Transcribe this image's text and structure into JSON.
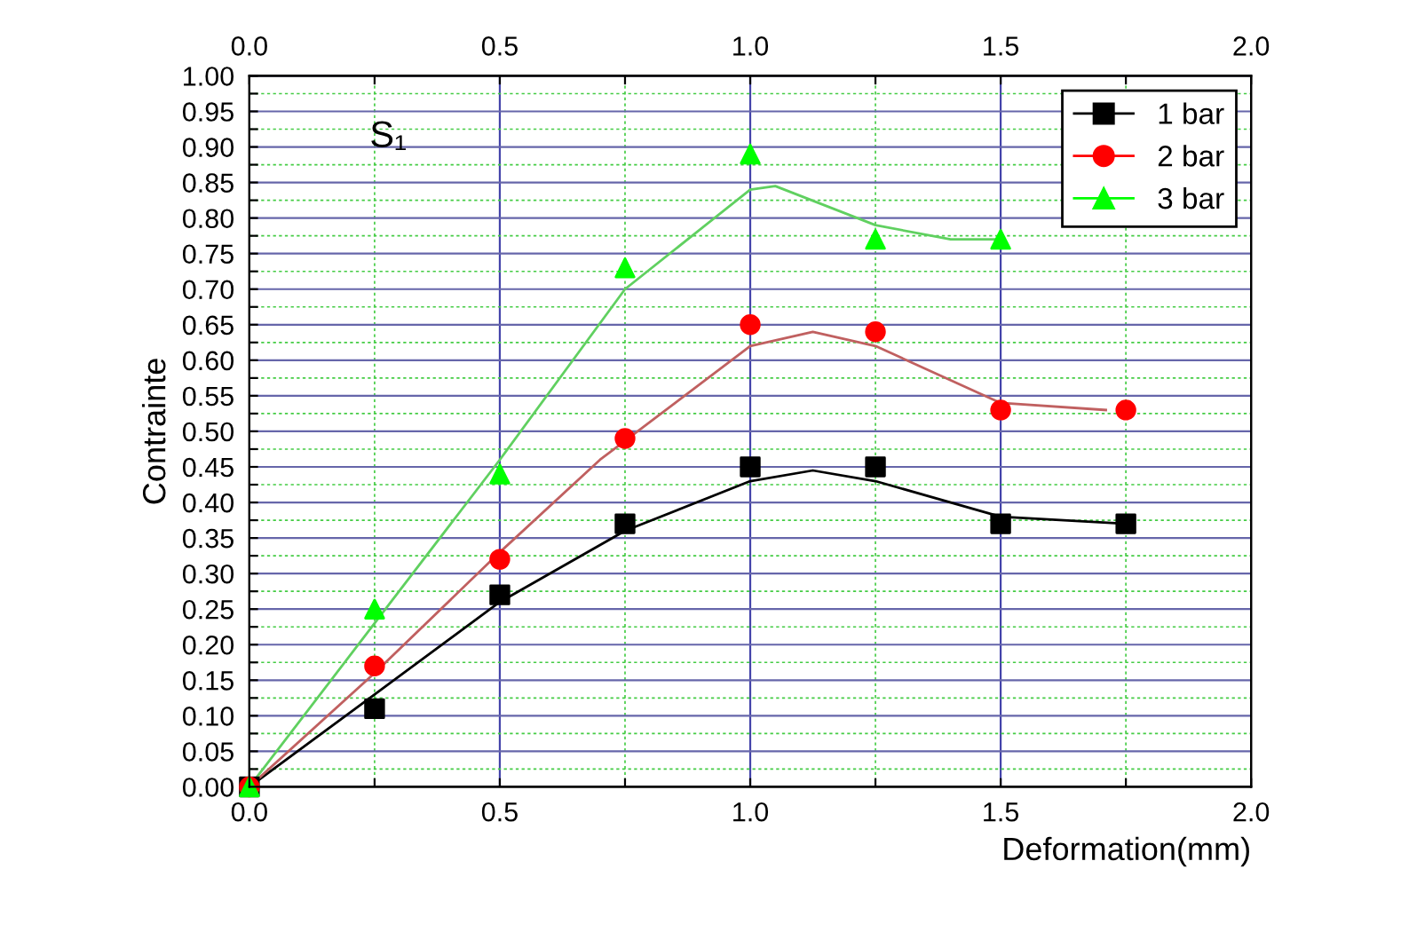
{
  "chart_data": {
    "type": "scatter",
    "xlabel": "Deformation(mm)",
    "ylabel": "Contrainte",
    "annotations": [
      "S₁"
    ],
    "x": [
      0,
      0.25,
      0.5,
      0.75,
      1.0,
      1.25,
      1.5,
      1.75
    ],
    "series": [
      {
        "name": "1 bar",
        "color": "#000000",
        "marker": "square",
        "values": [
          0,
          0.11,
          0.27,
          0.37,
          0.45,
          0.45,
          0.37,
          0.37
        ]
      },
      {
        "name": "2 bar",
        "color": "#ff0000",
        "marker": "circle",
        "values": [
          0,
          0.17,
          0.32,
          0.49,
          0.65,
          0.64,
          0.53,
          0.53
        ]
      },
      {
        "name": "3 bar",
        "color": "#00ff00",
        "marker": "triangle",
        "x": [
          0,
          0.25,
          0.5,
          0.75,
          1.0,
          1.25,
          1.5
        ],
        "values": [
          0,
          0.25,
          0.44,
          0.73,
          0.89,
          0.77,
          0.77
        ]
      },
      {
        "type": "line",
        "color": "#000000",
        "x": [
          0,
          0.25,
          0.5,
          0.75,
          1.0,
          1.125,
          1.25,
          1.5,
          1.75
        ],
        "values": [
          0,
          0.13,
          0.26,
          0.36,
          0.43,
          0.445,
          0.43,
          0.38,
          0.37
        ]
      },
      {
        "type": "line",
        "color": "#c06060",
        "x": [
          0,
          0.25,
          0.5,
          0.7,
          1.0,
          1.125,
          1.25,
          1.5,
          1.71
        ],
        "values": [
          0,
          0.16,
          0.33,
          0.46,
          0.62,
          0.64,
          0.62,
          0.54,
          0.53
        ]
      },
      {
        "type": "line",
        "color": "#60d060",
        "x": [
          0,
          0.25,
          0.5,
          0.75,
          1.0,
          1.05,
          1.25,
          1.4,
          1.5
        ],
        "values": [
          0,
          0.23,
          0.46,
          0.7,
          0.84,
          0.845,
          0.79,
          0.77,
          0.77
        ]
      }
    ],
    "xlim": [
      0,
      2
    ],
    "xticks": [
      {
        "value": 0,
        "label": "0.0"
      },
      {
        "value": 0.25,
        "label": null
      },
      0.5,
      {
        "value": 0.75,
        "label": null
      },
      {
        "value": 1,
        "label": "1.0"
      },
      {
        "value": 1.25,
        "label": null
      },
      1.5,
      {
        "value": 1.75,
        "label": null
      },
      {
        "value": 2,
        "label": "2.0"
      }
    ],
    "x2lim": [
      0,
      2
    ],
    "x2ticks": [
      {
        "value": 0,
        "label": "0.0"
      },
      {
        "value": 0.25,
        "label": null
      },
      0.5,
      {
        "value": 0.75,
        "label": null
      },
      {
        "value": 1,
        "label": "1.0"
      },
      {
        "value": 1.25,
        "label": null
      },
      1.5,
      {
        "value": 1.75,
        "label": null
      },
      {
        "value": 2,
        "label": "2.0"
      }
    ],
    "ylim": [
      0,
      1
    ],
    "yticks": [
      {
        "value": 0,
        "label": "0.00"
      },
      {
        "value": 0.025,
        "label": null
      },
      0.05,
      {
        "value": 0.075,
        "label": null
      },
      {
        "value": 0.1,
        "label": "0.10"
      },
      {
        "value": 0.125,
        "label": null
      },
      0.15,
      {
        "value": 0.175,
        "label": null
      },
      {
        "value": 0.2,
        "label": "0.20"
      },
      {
        "value": 0.225,
        "label": null
      },
      0.25,
      {
        "value": 0.275,
        "label": null
      },
      {
        "value": 0.3,
        "label": "0.30"
      },
      {
        "value": 0.325,
        "label": null
      },
      0.35,
      {
        "value": 0.375,
        "label": null
      },
      {
        "value": 0.4,
        "label": "0.40"
      },
      {
        "value": 0.425,
        "label": null
      },
      0.45,
      {
        "value": 0.475,
        "label": null
      },
      {
        "value": 0.5,
        "label": "0.50"
      },
      {
        "value": 0.525,
        "label": null
      },
      0.55,
      {
        "value": 0.575,
        "label": null
      },
      {
        "value": 0.6,
        "label": "0.60"
      },
      {
        "value": 0.625,
        "label": null
      },
      0.65,
      {
        "value": 0.675,
        "label": null
      },
      {
        "value": 0.7,
        "label": "0.70"
      },
      {
        "value": 0.725,
        "label": null
      },
      0.75,
      {
        "value": 0.775,
        "label": null
      },
      {
        "value": 0.8,
        "label": "0.80"
      },
      {
        "value": 0.825,
        "label": null
      },
      0.85,
      {
        "value": 0.875,
        "label": null
      },
      {
        "value": 0.9,
        "label": "0.90"
      },
      {
        "value": 0.925,
        "label": null
      },
      0.95,
      {
        "value": 0.975,
        "label": null
      },
      {
        "value": 1,
        "label": "1.00"
      }
    ],
    "grid": true,
    "legend": "top right"
  }
}
